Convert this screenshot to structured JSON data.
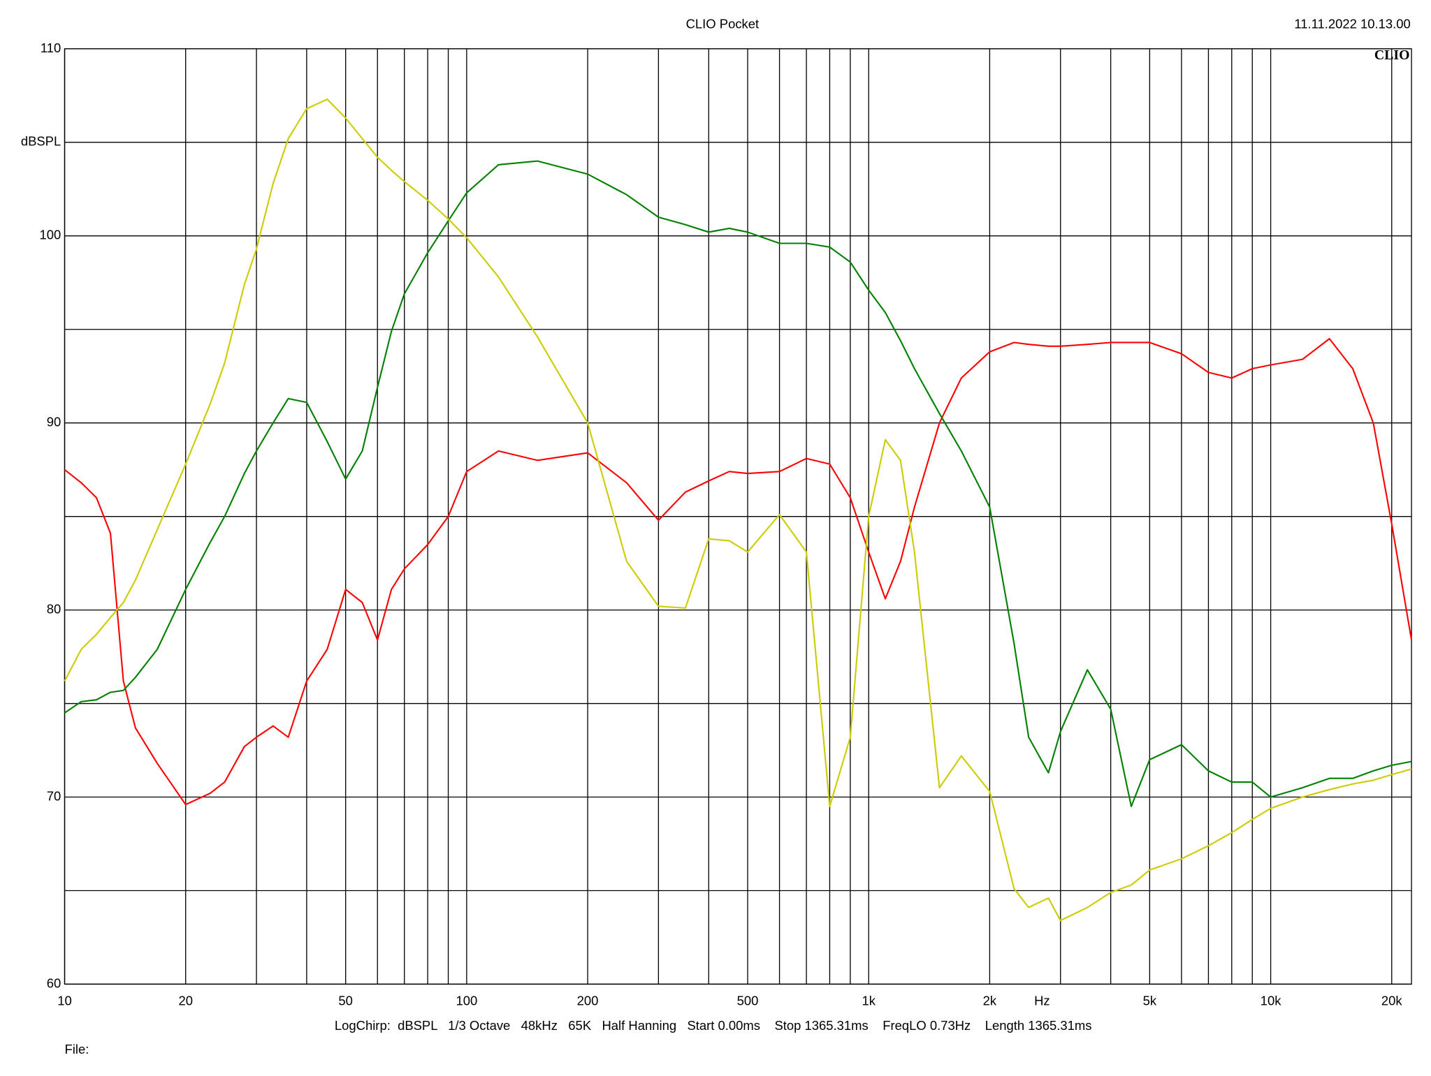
{
  "chart_data": {
    "type": "line",
    "title": "CLIO Pocket",
    "timestamp": "11.11.2022 10.13.00",
    "logo": "CLIO",
    "ylabel": "dBSPL",
    "xlabel": "Hz",
    "footer": "LogChirp:  dBSPL   1/3 Octave   48kHz   65K   Half Hanning   Start 0.00ms    Stop 1365.31ms    FreqLO 0.73Hz    Length 1365.31ms",
    "file_label": "File:",
    "xscale": "log",
    "grid": true,
    "xlim": [
      10,
      22400
    ],
    "ylim": [
      60,
      110
    ],
    "xticks": [
      10,
      20,
      50,
      100,
      200,
      500,
      {
        "value": 1000,
        "label": "1k"
      },
      {
        "value": 2000,
        "label": "2k"
      },
      {
        "value": 5000,
        "label": "5k"
      },
      {
        "value": 10000,
        "label": "10k"
      },
      {
        "value": 20000,
        "label": "20k"
      }
    ],
    "xminorticks": [
      30,
      40,
      60,
      70,
      80,
      90,
      300,
      400,
      600,
      700,
      800,
      900,
      3000,
      4000,
      6000,
      7000,
      8000,
      9000,
      30000,
      40000,
      60000,
      70000,
      80000,
      90000
    ],
    "yticks": [
      60,
      70,
      80,
      90,
      100,
      110
    ],
    "yminorticks": [
      65,
      75,
      85,
      95,
      105
    ],
    "x": [
      10,
      11,
      12,
      13,
      14,
      15,
      17,
      20,
      23,
      25,
      28,
      30,
      33,
      36,
      40,
      45,
      50,
      55,
      60,
      65,
      70,
      80,
      90,
      100,
      120,
      150,
      200,
      250,
      300,
      350,
      400,
      450,
      500,
      600,
      700,
      800,
      900,
      1000,
      1100,
      1200,
      1300,
      1500,
      1700,
      2000,
      2300,
      2500,
      2800,
      3000,
      3500,
      4000,
      4500,
      5000,
      6000,
      7000,
      8000,
      9000,
      10000,
      12000,
      14000,
      16000,
      18000,
      20000,
      22400
    ],
    "series": [
      {
        "color": "#ff0000",
        "values": [
          87.5,
          86.8,
          86.0,
          84.1,
          76.2,
          73.7,
          71.8,
          69.6,
          70.2,
          70.8,
          72.7,
          73.2,
          73.8,
          73.2,
          76.2,
          77.9,
          81.1,
          80.4,
          78.4,
          81.1,
          82.2,
          83.5,
          85.0,
          87.4,
          88.5,
          88.0,
          88.4,
          86.8,
          84.8,
          86.3,
          86.9,
          87.4,
          87.3,
          87.4,
          88.1,
          87.8,
          86.0,
          83.1,
          80.6,
          82.6,
          85.5,
          90.0,
          92.4,
          93.8,
          94.3,
          94.2,
          94.1,
          94.1,
          94.2,
          94.3,
          94.3,
          94.3,
          93.7,
          92.7,
          92.4,
          92.9,
          93.1,
          93.4,
          94.5,
          92.9,
          90.0,
          84.6,
          78.4
        ]
      },
      {
        "color": "#008000",
        "values": [
          74.5,
          75.1,
          75.2,
          75.6,
          75.7,
          76.4,
          77.9,
          81.1,
          83.6,
          85.0,
          87.3,
          88.5,
          90.0,
          91.3,
          91.1,
          89.0,
          87.0,
          88.5,
          91.9,
          94.9,
          96.9,
          99.1,
          100.8,
          102.3,
          103.8,
          104.0,
          103.3,
          102.2,
          101.0,
          100.6,
          100.2,
          100.4,
          100.2,
          99.6,
          99.6,
          99.4,
          98.6,
          97.1,
          95.9,
          94.4,
          92.9,
          90.5,
          88.5,
          85.5,
          78.2,
          73.2,
          71.3,
          73.5,
          76.8,
          74.7,
          69.5,
          72.0,
          72.8,
          71.4,
          70.8,
          70.8,
          70.0,
          70.5,
          71.0,
          71.0,
          71.4,
          71.7,
          71.9
        ]
      },
      {
        "color": "#cccc00",
        "values": [
          76.2,
          77.9,
          78.7,
          79.6,
          80.4,
          81.6,
          84.3,
          87.8,
          91.0,
          93.2,
          97.4,
          99.3,
          102.8,
          105.2,
          106.8,
          107.3,
          106.3,
          105.2,
          104.2,
          103.5,
          102.9,
          101.9,
          100.9,
          99.9,
          97.8,
          94.6,
          90.0,
          82.6,
          80.2,
          80.1,
          83.8,
          83.7,
          83.1,
          85.1,
          83.1,
          69.5,
          73.2,
          85.0,
          89.1,
          88.0,
          83.1,
          70.5,
          72.2,
          70.3,
          65.1,
          64.1,
          64.6,
          63.4,
          64.1,
          64.9,
          65.3,
          66.1,
          66.7,
          67.4,
          68.1,
          68.8,
          69.4,
          70.0,
          70.4,
          70.7,
          70.9,
          71.2,
          71.5
        ]
      }
    ]
  }
}
